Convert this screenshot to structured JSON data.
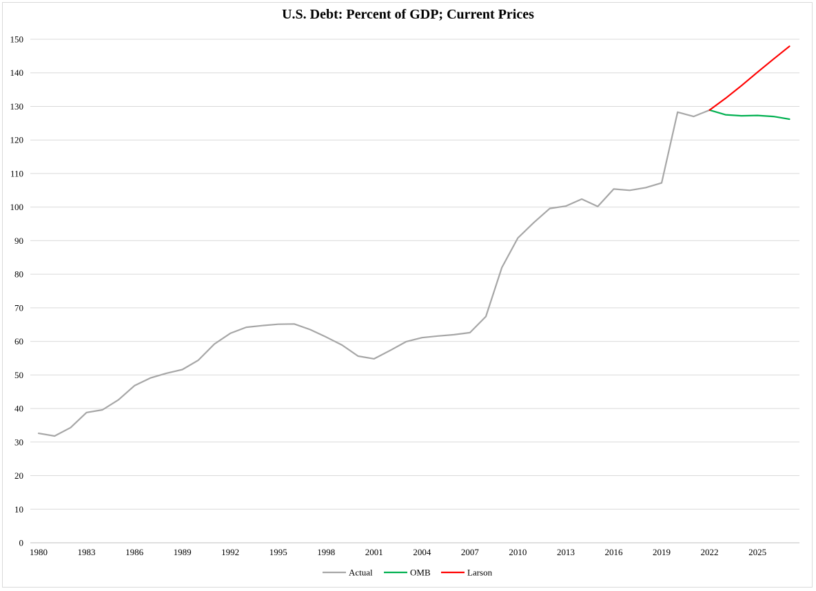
{
  "chart_data": {
    "type": "line",
    "title": "U.S. Debt: Percent of GDP; Current Prices",
    "xlabel": "",
    "ylabel": "",
    "ylim": [
      0,
      150
    ],
    "yticks": [
      0,
      10,
      20,
      30,
      40,
      50,
      60,
      70,
      80,
      90,
      100,
      110,
      120,
      130,
      140,
      150
    ],
    "xlim": [
      1980,
      2027
    ],
    "xticks": [
      1980,
      1983,
      1986,
      1989,
      1992,
      1995,
      1998,
      2001,
      2004,
      2007,
      2010,
      2013,
      2016,
      2019,
      2022,
      2025
    ],
    "grid": "horizontal",
    "legend_position": "bottom",
    "series": [
      {
        "name": "Actual",
        "color": "#a6a6a6",
        "x": [
          1980,
          1981,
          1982,
          1983,
          1984,
          1985,
          1986,
          1987,
          1988,
          1989,
          1990,
          1991,
          1992,
          1993,
          1994,
          1995,
          1996,
          1997,
          1998,
          1999,
          2000,
          2001,
          2002,
          2003,
          2004,
          2005,
          2006,
          2007,
          2008,
          2009,
          2010,
          2011,
          2012,
          2013,
          2014,
          2015,
          2016,
          2017,
          2018,
          2019,
          2020,
          2021,
          2022
        ],
        "values": [
          32.6,
          31.8,
          34.3,
          38.8,
          39.6,
          42.6,
          46.8,
          49.1,
          50.5,
          51.6,
          54.4,
          59.2,
          62.4,
          64.2,
          64.7,
          65.1,
          65.2,
          63.5,
          61.3,
          58.9,
          55.6,
          54.8,
          57.3,
          59.9,
          61.1,
          61.6,
          62.0,
          62.6,
          67.4,
          82.0,
          90.8,
          95.4,
          99.6,
          100.3,
          102.4,
          100.2,
          105.4,
          105.0,
          105.8,
          107.2,
          128.3,
          127.0,
          128.9
        ]
      },
      {
        "name": "OMB",
        "color": "#00b050",
        "x": [
          2022,
          2023,
          2024,
          2025,
          2026,
          2027
        ],
        "values": [
          128.9,
          127.5,
          127.2,
          127.3,
          127.0,
          126.2
        ]
      },
      {
        "name": "Larson",
        "color": "#ff0000",
        "x": [
          2022,
          2023,
          2024,
          2025,
          2026,
          2027
        ],
        "values": [
          128.9,
          132.4,
          136.2,
          140.2,
          144.1,
          147.9
        ]
      }
    ]
  }
}
